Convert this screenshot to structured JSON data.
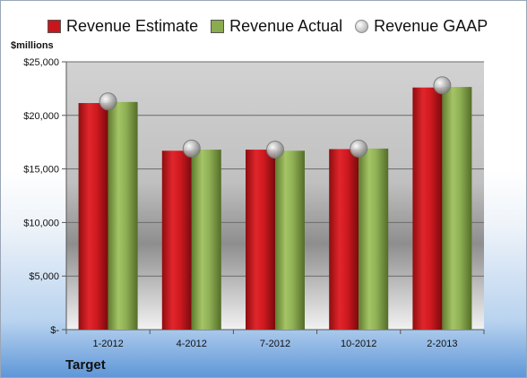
{
  "chart_data": {
    "type": "bar",
    "units_label": "$millions",
    "company_label": "Target",
    "categories": [
      "1-2012",
      "4-2012",
      "7-2012",
      "10-2012",
      "2-2013"
    ],
    "series": [
      {
        "name": "Revenue Estimate",
        "values": [
          21150,
          16700,
          16800,
          16850,
          22600
        ],
        "color": "#c8161c"
      },
      {
        "name": "Revenue Actual",
        "values": [
          21250,
          16800,
          16700,
          16900,
          22650
        ],
        "color": "#8aab4f"
      },
      {
        "name": "Revenue GAAP",
        "values": [
          21300,
          16900,
          16800,
          16900,
          22800
        ],
        "color": "#a8a8a8",
        "marker": "circle"
      }
    ],
    "ylim": [
      0,
      25000
    ],
    "yticks": [
      0,
      5000,
      10000,
      15000,
      20000,
      25000
    ],
    "ytick_labels": [
      "$-",
      "$5,000",
      "$10,000",
      "$15,000",
      "$20,000",
      "$25,000"
    ],
    "grid": true,
    "legend_position": "top"
  }
}
